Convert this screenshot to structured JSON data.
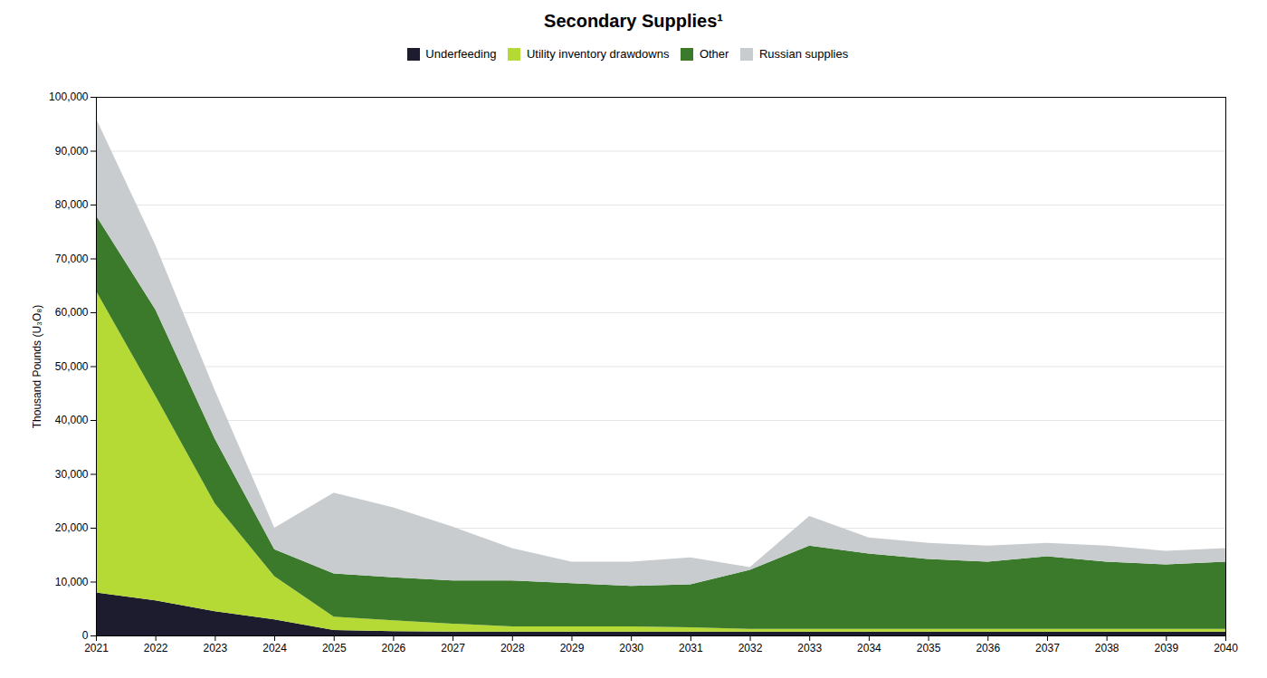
{
  "chart_data": {
    "type": "area",
    "stacked": true,
    "title": "Secondary Supplies¹",
    "ylabel": "Thousand Pounds (U₃O₈)",
    "x": [
      2021,
      2022,
      2023,
      2024,
      2025,
      2026,
      2027,
      2028,
      2029,
      2030,
      2031,
      2032,
      2033,
      2034,
      2035,
      2036,
      2037,
      2038,
      2039,
      2040
    ],
    "series": [
      {
        "name": "Underfeeding",
        "color": "#1c1c2e",
        "values": [
          8000,
          6500,
          4500,
          3000,
          1000,
          800,
          700,
          700,
          700,
          700,
          700,
          700,
          700,
          700,
          700,
          700,
          700,
          700,
          700,
          700
        ]
      },
      {
        "name": "Utility inventory drawdowns",
        "color": "#b5d935",
        "values": [
          56000,
          38000,
          20000,
          8000,
          2500,
          2000,
          1500,
          1000,
          1000,
          1000,
          800,
          500,
          500,
          500,
          500,
          500,
          500,
          500,
          500,
          500
        ]
      },
      {
        "name": "Other",
        "color": "#3a7a2a",
        "values": [
          14000,
          16000,
          12000,
          5000,
          8000,
          8000,
          8000,
          8500,
          8000,
          7500,
          8000,
          11000,
          15500,
          14000,
          13000,
          12500,
          13500,
          12500,
          12000,
          12500
        ]
      },
      {
        "name": "Russian supplies",
        "color": "#c8cccf",
        "values": [
          18000,
          12000,
          9000,
          4000,
          15000,
          13000,
          10000,
          6000,
          4000,
          4500,
          5000,
          500,
          5500,
          3000,
          3000,
          3000,
          2500,
          3000,
          2500,
          2500
        ]
      }
    ],
    "xlim": [
      2021,
      2040
    ],
    "xticks": [
      2021,
      2022,
      2023,
      2024,
      2025,
      2026,
      2027,
      2028,
      2029,
      2030,
      2031,
      2032,
      2033,
      2034,
      2035,
      2036,
      2037,
      2038,
      2039,
      2040
    ],
    "ylim": [
      0,
      100000
    ],
    "yticks": [
      0,
      {
        "value": 10000,
        "label": "10,000"
      },
      {
        "value": 20000,
        "label": "20,000"
      },
      {
        "value": 30000,
        "label": "30,000"
      },
      {
        "value": 40000,
        "label": "40,000"
      },
      {
        "value": 50000,
        "label": "50,000"
      },
      {
        "value": 60000,
        "label": "60,000"
      },
      {
        "value": 70000,
        "label": "70,000"
      },
      {
        "value": 80000,
        "label": "80,000"
      },
      {
        "value": 90000,
        "label": "90,000"
      },
      {
        "value": 100000,
        "label": "100,000"
      }
    ],
    "grid": true,
    "legend": "top"
  }
}
